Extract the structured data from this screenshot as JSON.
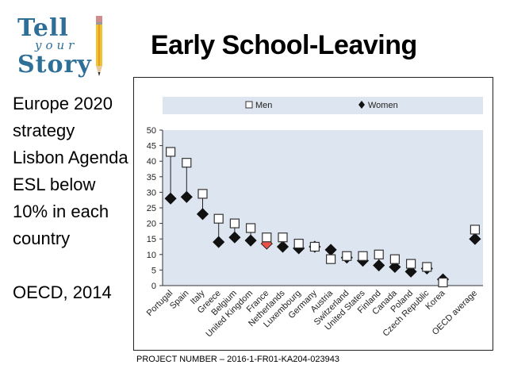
{
  "logo": {
    "line1": "Tell",
    "line2": "your",
    "line3": "Story"
  },
  "slide": {
    "title": "Early School-Leaving"
  },
  "bullets": [
    {
      "text": "Europe 2020 strategy"
    },
    {
      "text": "Lisbon Agenda"
    },
    {
      "text": "ESL below 10% in each country"
    },
    {
      "text": "OECD, 2014"
    }
  ],
  "footer": {
    "text": "PROJECT NUMBER – 2016-1-FR01-KA204-023943"
  },
  "colors": {
    "panel": "#dde5f0",
    "highlight": "#e8524a",
    "marker": "#111111",
    "logo": "#2e6f98"
  },
  "chart_data": {
    "type": "scatter",
    "title": "",
    "xlabel": "",
    "ylabel": "",
    "ylim": [
      0,
      50
    ],
    "yticks": [
      0,
      5,
      10,
      15,
      20,
      25,
      30,
      35,
      40,
      45,
      50
    ],
    "legend": "top",
    "categories": [
      "Portugal",
      "Spain",
      "Italy",
      "Greece",
      "Belgium",
      "United Kingdom",
      "France",
      "Netherlands",
      "Luxembourg",
      "Germany",
      "Austria",
      "Switzerland",
      "United States",
      "Finland",
      "Canada",
      "Poland",
      "Czech Republic",
      "Korea",
      "",
      "OECD average"
    ],
    "highlight": "France",
    "series": [
      {
        "name": "Men",
        "marker": "square",
        "values": [
          43,
          39.5,
          29.5,
          21.5,
          20,
          18.5,
          15.5,
          15.5,
          13.5,
          12.5,
          8.5,
          9.5,
          9.5,
          10,
          8.5,
          7,
          6,
          1,
          null,
          18
        ]
      },
      {
        "name": "Women",
        "marker": "diamond",
        "values": [
          28,
          28.5,
          23,
          14,
          15.5,
          14.5,
          13.5,
          12.5,
          12,
          12.5,
          11.5,
          9,
          8,
          6.5,
          6,
          4.5,
          5.5,
          2,
          null,
          15
        ]
      }
    ]
  }
}
